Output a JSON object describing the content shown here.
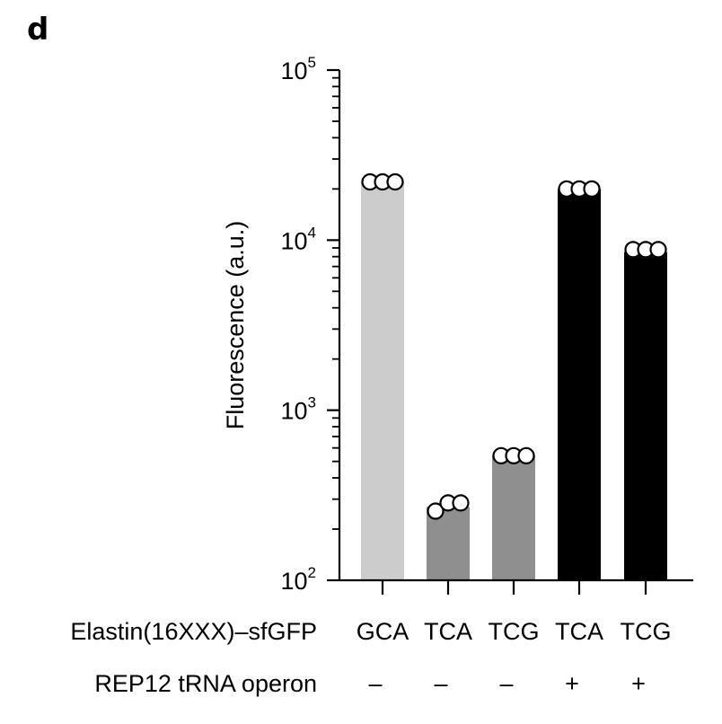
{
  "panel_label": "d",
  "chart_data": {
    "type": "bar",
    "ylabel": "Fluorescence (a.u.)",
    "yscale": "log",
    "ylim": [
      100,
      100000
    ],
    "yticks": [
      {
        "value": 100,
        "base": "10",
        "exp": "2"
      },
      {
        "value": 1000,
        "base": "10",
        "exp": "3"
      },
      {
        "value": 10000,
        "base": "10",
        "exp": "4"
      },
      {
        "value": 100000,
        "base": "10",
        "exp": "5"
      }
    ],
    "row_labels": {
      "codon": "Elastin(16XXX)–sfGFP",
      "operon": "REP12 tRNA operon"
    },
    "categories": [
      "GCA",
      "TCA",
      "TCG",
      "TCA",
      "TCG"
    ],
    "operon": [
      "–",
      "–",
      "–",
      "+",
      "+"
    ],
    "values": [
      22000,
      270,
      540,
      20000,
      8500
    ],
    "points": [
      [
        22000,
        22000,
        22000
      ],
      [
        255,
        285,
        285
      ],
      [
        540,
        540,
        540
      ],
      [
        20000,
        20000,
        20000
      ],
      [
        8800,
        8800,
        8800
      ]
    ],
    "colors": [
      "#cccccc",
      "#8f8f8f",
      "#8f8f8f",
      "#000000",
      "#000000"
    ]
  }
}
